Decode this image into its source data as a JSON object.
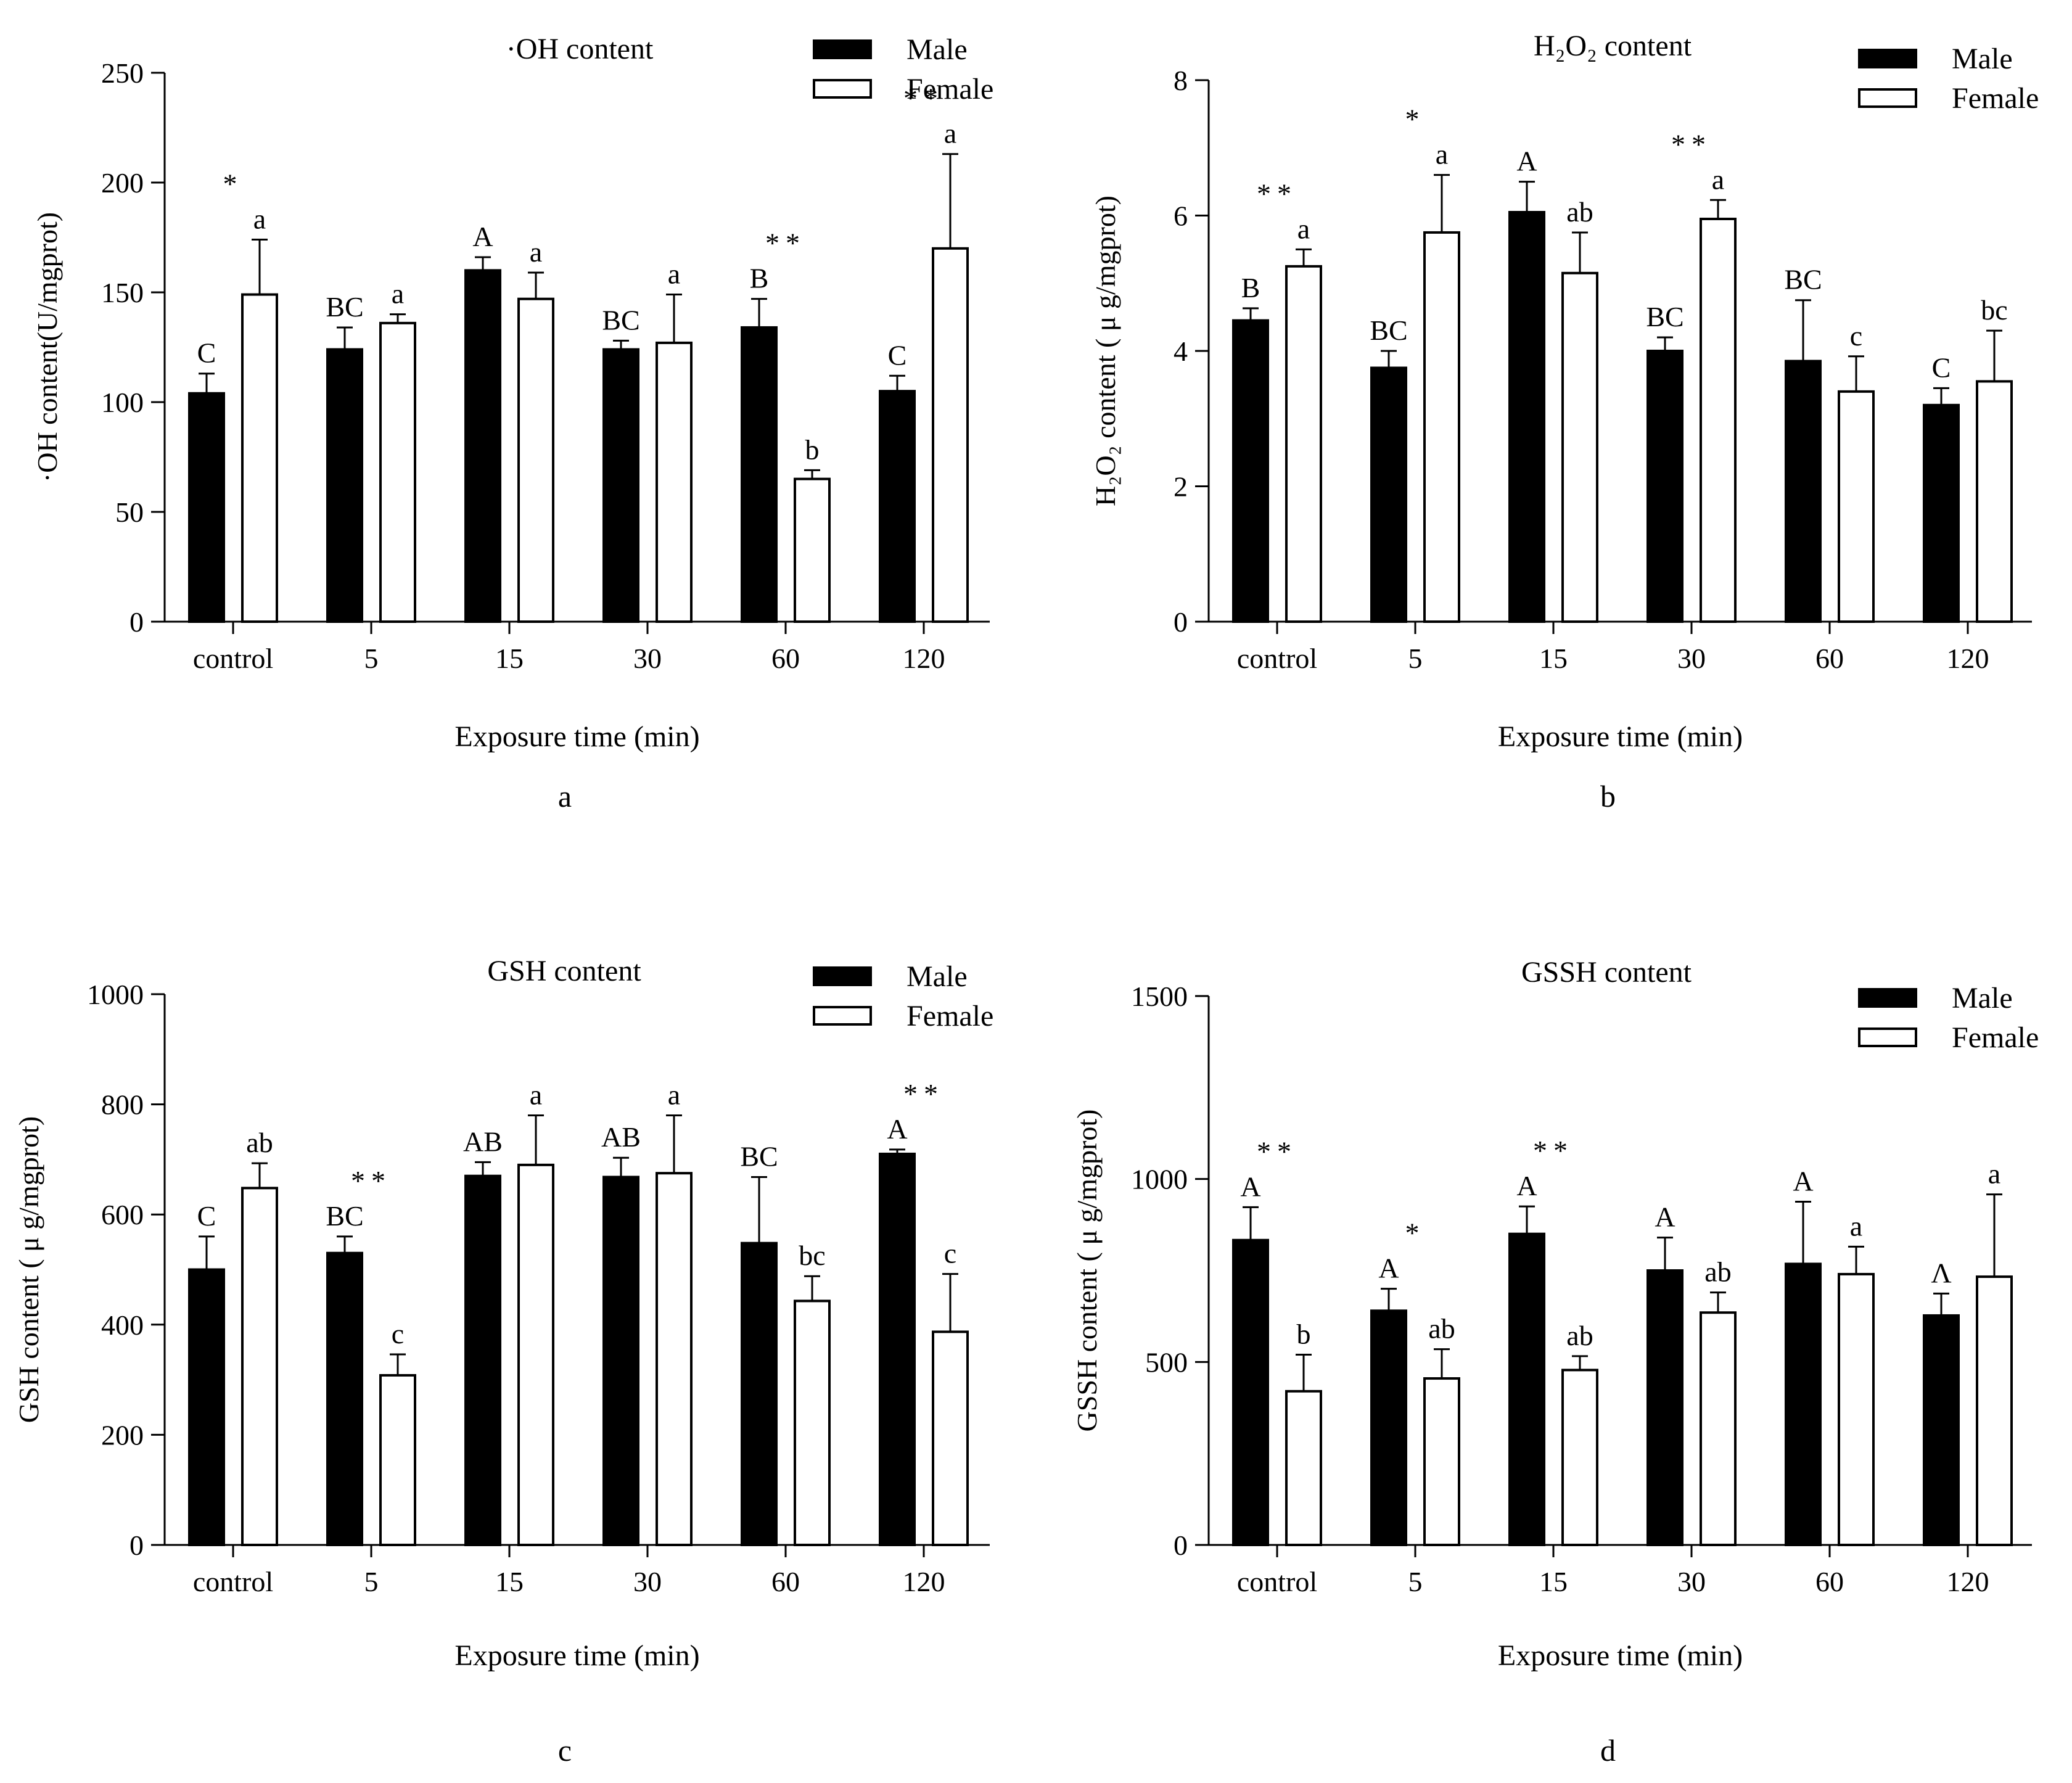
{
  "colors": {
    "male": "#000000",
    "female": "#ffffff",
    "stroke": "#000000"
  },
  "chart_data": [
    {
      "type": "bar",
      "panel_label": "a",
      "title": "·OH content",
      "xlabel": "Exposure time (min)",
      "ylabel": "·OH content(U/mgprot)",
      "ylim": [
        0,
        250
      ],
      "yticks": [
        "0",
        "50",
        "100",
        "150",
        "200",
        "250"
      ],
      "categories": [
        "control",
        "5",
        "15",
        "30",
        "60",
        "120"
      ],
      "legend": [
        "Male",
        "Female"
      ],
      "series": [
        {
          "name": "Male",
          "values": [
            104,
            124,
            160,
            124,
            134,
            105
          ],
          "errors": [
            9,
            10,
            6,
            4,
            13,
            7
          ],
          "letters": [
            "C",
            "BC",
            "A",
            "BC",
            "B",
            "C"
          ]
        },
        {
          "name": "Female",
          "values": [
            149,
            136,
            147,
            127,
            65,
            170
          ],
          "errors": [
            25,
            4,
            12,
            22,
            4,
            43
          ],
          "letters": [
            "a",
            "a",
            "a",
            "a",
            "b",
            "a"
          ]
        }
      ],
      "significance": [
        "*",
        "",
        "",
        "",
        "**",
        "**"
      ]
    },
    {
      "type": "bar",
      "panel_label": "b",
      "title": "H₂O₂ content",
      "xlabel": "Exposure time (min)",
      "ylabel": "H₂O₂ content ( μ g/mgprot)",
      "ylim": [
        0,
        8
      ],
      "yticks": [
        "0",
        "2",
        "4",
        "6",
        "8"
      ],
      "categories": [
        "control",
        "5",
        "15",
        "30",
        "60",
        "120"
      ],
      "legend": [
        "Male",
        "Female"
      ],
      "series": [
        {
          "name": "Male",
          "values": [
            4.45,
            3.75,
            6.05,
            4.0,
            3.85,
            3.2
          ],
          "errors": [
            0.18,
            0.25,
            0.45,
            0.2,
            0.9,
            0.25
          ],
          "letters": [
            "B",
            "BC",
            "A",
            "BC",
            "BC",
            "C"
          ]
        },
        {
          "name": "Female",
          "values": [
            5.25,
            5.75,
            5.15,
            5.95,
            3.4,
            3.55
          ],
          "errors": [
            0.25,
            0.85,
            0.6,
            0.28,
            0.52,
            0.75
          ],
          "letters": [
            "a",
            "a",
            "ab",
            "a",
            "c",
            "bc"
          ]
        }
      ],
      "significance": [
        "**",
        "*",
        "",
        "**",
        "",
        ""
      ]
    },
    {
      "type": "bar",
      "panel_label": "c",
      "title": "GSH content",
      "xlabel": "Exposure time (min)",
      "ylabel": "GSH content ( μ g/mgprot)",
      "ylim": [
        0,
        1000
      ],
      "yticks": [
        "0",
        "200",
        "400",
        "600",
        "800",
        "1000"
      ],
      "categories": [
        "control",
        "5",
        "15",
        "30",
        "60",
        "120"
      ],
      "legend": [
        "Male",
        "Female"
      ],
      "series": [
        {
          "name": "Male",
          "values": [
            500,
            530,
            670,
            668,
            548,
            710
          ],
          "errors": [
            60,
            30,
            25,
            35,
            120,
            8
          ],
          "letters": [
            "C",
            "BC",
            "AB",
            "AB",
            "BC",
            "A"
          ]
        },
        {
          "name": "Female",
          "values": [
            648,
            308,
            690,
            675,
            443,
            387
          ],
          "errors": [
            45,
            38,
            90,
            105,
            45,
            105
          ],
          "letters": [
            "ab",
            "c",
            "a",
            "a",
            "bc",
            "c"
          ]
        }
      ],
      "significance": [
        "",
        "**",
        "",
        "",
        "",
        "**"
      ]
    },
    {
      "type": "bar",
      "panel_label": "d",
      "title": "GSSH  content",
      "xlabel": "Exposure time (min)",
      "ylabel": "GSSH  content ( μ g/mgprot)",
      "ylim": [
        0,
        1500
      ],
      "yticks": [
        "0",
        "500",
        "1000",
        "1500"
      ],
      "categories": [
        "control",
        "5",
        "15",
        "30",
        "60",
        "120"
      ],
      "legend": [
        "Male",
        "Female"
      ],
      "series": [
        {
          "name": "Male",
          "values": [
            833,
            640,
            850,
            750,
            768,
            627
          ],
          "errors": [
            90,
            60,
            75,
            90,
            170,
            60
          ],
          "letters": [
            "A",
            "A",
            "A",
            "A",
            "A",
            "Λ"
          ]
        },
        {
          "name": "Female",
          "values": [
            420,
            455,
            478,
            635,
            740,
            733
          ],
          "errors": [
            100,
            80,
            38,
            55,
            75,
            225
          ],
          "letters": [
            "b",
            "ab",
            "ab",
            "ab",
            "a",
            "a"
          ]
        }
      ],
      "significance": [
        "**",
        "*",
        "**",
        "",
        "",
        ""
      ]
    }
  ]
}
